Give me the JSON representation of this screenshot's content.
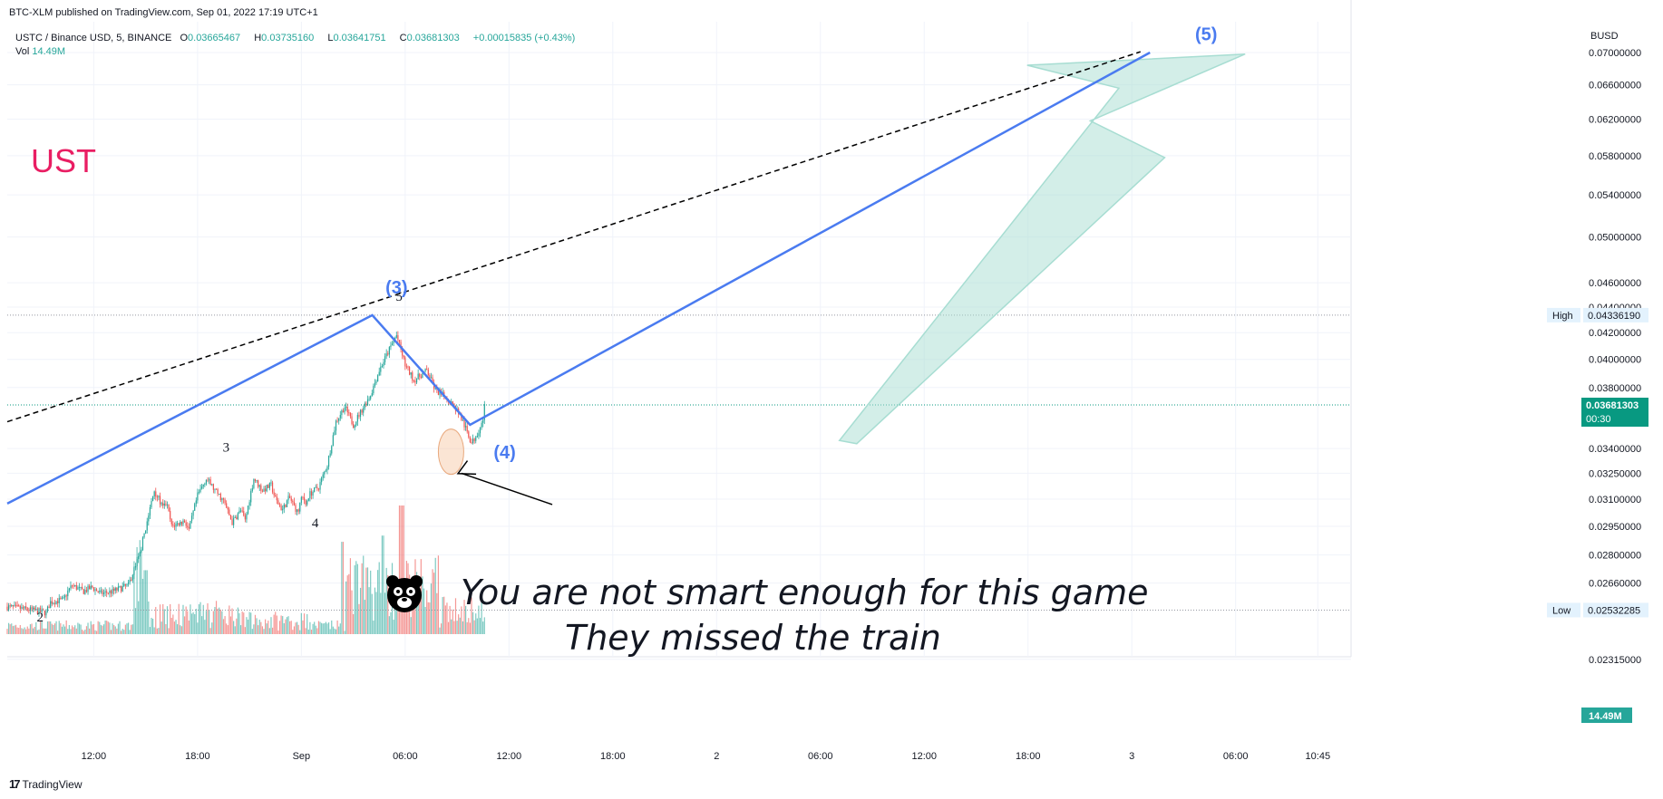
{
  "header": {
    "published": "BTC-XLM published on TradingView.com, Sep 01, 2022 17:19 UTC+1",
    "symbol": "USTC / Binance USD, 5, BINANCE",
    "ohlc": {
      "o_label": "O",
      "o": "0.03665467",
      "h_label": "H",
      "h": "0.03735160",
      "l_label": "L",
      "l": "0.03641751",
      "c_label": "C",
      "c": "0.03681303",
      "change": "+0.00015835 (+0.43%)"
    },
    "vol_label": "Vol",
    "vol_value": "14.49M",
    "currency": "BUSD"
  },
  "footer": {
    "brand": "TradingView",
    "logo_glyph": "17"
  },
  "chart_data": {
    "type": "candlestick",
    "title": "UST",
    "title_color": "#e91e63",
    "y_axis": {
      "scale": "log",
      "range": [
        0.0228,
        0.0718
      ],
      "ticks": [
        "0.07000000",
        "0.06600000",
        "0.06200000",
        "0.05800000",
        "0.05400000",
        "0.05000000",
        "0.04600000",
        "0.04400000",
        "0.04200000",
        "0.04000000",
        "0.03800000",
        "0.03400000",
        "0.03250000",
        "0.03100000",
        "0.02950000",
        "0.02800000",
        "0.02660000",
        "0.02315000"
      ]
    },
    "x_axis": {
      "ticks": [
        "12:00",
        "18:00",
        "Sep",
        "06:00",
        "12:00",
        "18:00",
        "2",
        "06:00",
        "12:00",
        "18:00",
        "3",
        "06:00",
        "10:45"
      ]
    },
    "badges": {
      "high_label": "High",
      "high_value": "0.04336190",
      "low_label": "Low",
      "low_value": "0.02532285",
      "last_price": "0.03681303",
      "countdown": "00:30",
      "volume": "14.49M"
    },
    "price_path": {
      "times": [
        0.0,
        2.4,
        4.5,
        5.0,
        6.5,
        7.0,
        7.5,
        8.8,
        9.8,
        10.8,
        12.2,
        14.0,
        15.3,
        17.0,
        18.0,
        18.4,
        19.0,
        20.5,
        21.0,
        22.0,
        23.0,
        24.0,
        25.0,
        26.0,
        27.0,
        27.5,
        28.5,
        29.5,
        30.5,
        31.0,
        31.8,
        32.6,
        33.3,
        33.6,
        33.8,
        34.1,
        34.6,
        35.0,
        36.0,
        37.0,
        38.0,
        39.0,
        40.0,
        41.0,
        42.0,
        43.0,
        44.0,
        45.0,
        46.0,
        47.0,
        48.5,
        49.5,
        51.0,
        52.2,
        53.7,
        54.9,
        55.2
      ],
      "values": [
        0.02548,
        0.02535,
        0.0252,
        0.0257,
        0.0258,
        0.0262,
        0.0265,
        0.0262,
        0.0264,
        0.0261,
        0.0262,
        0.0265,
        0.028,
        0.0315,
        0.0305,
        0.0308,
        0.0295,
        0.0298,
        0.0293,
        0.0312,
        0.0322,
        0.0315,
        0.0309,
        0.0297,
        0.0304,
        0.0298,
        0.0322,
        0.0315,
        0.0318,
        0.031,
        0.0304,
        0.0311,
        0.0305,
        0.0302,
        0.0307,
        0.0311,
        0.0308,
        0.0313,
        0.0317,
        0.033,
        0.0357,
        0.0367,
        0.0355,
        0.0365,
        0.0375,
        0.0392,
        0.0405,
        0.0418,
        0.0396,
        0.0385,
        0.0392,
        0.0378,
        0.0372,
        0.0363,
        0.0343,
        0.0356,
        0.0368
      ]
    },
    "volume": {
      "max": 14.49
    },
    "wave_labels": [
      {
        "text": "2",
        "t": 3.8,
        "price": 0.0248
      },
      {
        "text": "3",
        "t": 25.3,
        "price": 0.0338
      },
      {
        "text": "4",
        "t": 35.6,
        "price": 0.02945
      },
      {
        "text": "5",
        "t": 45.3,
        "price": 0.0445
      },
      {
        "text": "(3)",
        "t": 45.0,
        "price": 0.0451
      },
      {
        "text": "(4)",
        "t": 57.5,
        "price": 0.0334
      },
      {
        "text": "(5)",
        "t": 138.6,
        "price": 0.0716
      }
    ],
    "annotations": [
      "You are not smart enough for this game",
      "They missed the train"
    ],
    "colors": {
      "up": "#26a69a",
      "down": "#ef5350",
      "wave": "#4a7bf0",
      "trend": "#000000",
      "arrow": "#a7ddd2",
      "last_price": "#089981"
    }
  }
}
